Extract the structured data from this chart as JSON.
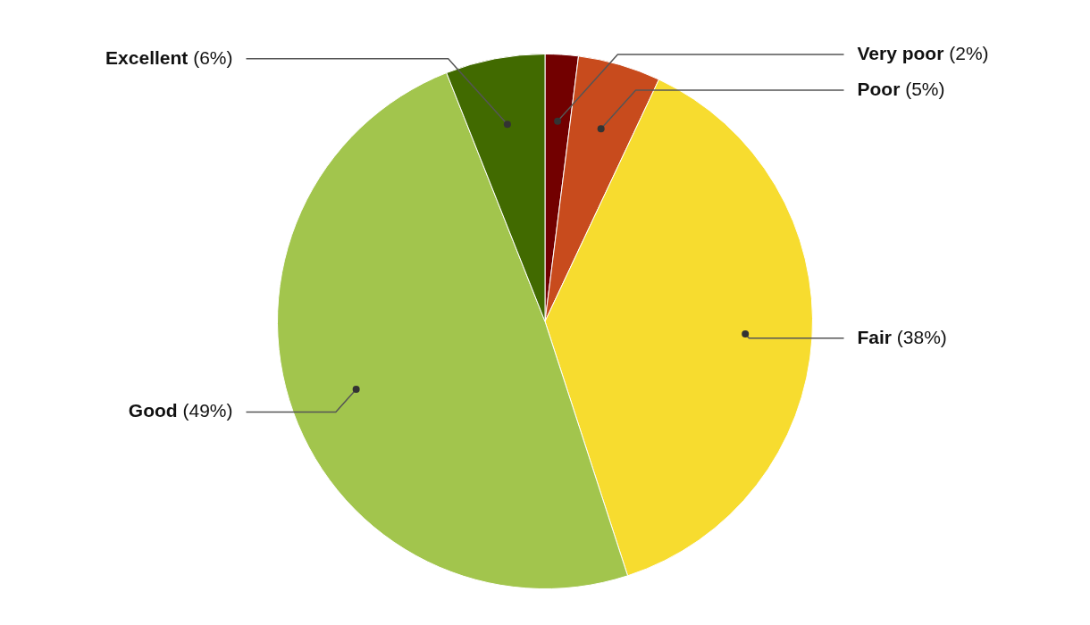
{
  "chart_data": {
    "type": "pie",
    "categories": [
      "Very poor",
      "Poor",
      "Fair",
      "Good",
      "Excellent"
    ],
    "values": [
      2,
      5,
      38,
      49,
      6
    ],
    "colors": [
      "#720000",
      "#c84b1d",
      "#f7dc2f",
      "#a2c54d",
      "#416a00"
    ],
    "value_labels": [
      "(2%)",
      "(5%)",
      "(38%)",
      "(49%)",
      "(6%)"
    ],
    "legend": false
  }
}
